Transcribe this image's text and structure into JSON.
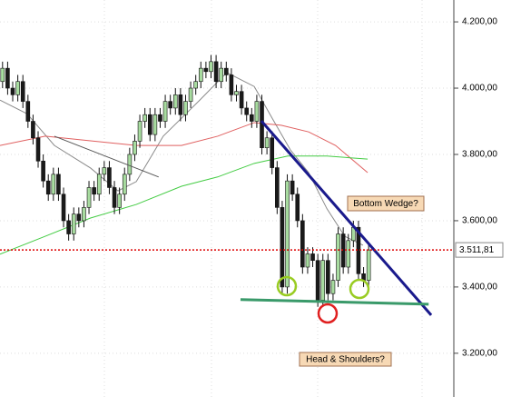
{
  "chart_data": {
    "type": "candlestick",
    "xlim": [
      -0.5,
      88.75
    ],
    "ylim": [
      3068,
      4266
    ],
    "yticks": [
      {
        "value": 4200,
        "label": "4.200,00"
      },
      {
        "value": 4000,
        "label": "4.000,00"
      },
      {
        "value": 3800,
        "label": "3.800,00"
      },
      {
        "value": 3600,
        "label": "3.600,00"
      },
      {
        "value": 3400,
        "label": "3.400,00"
      },
      {
        "value": 3200,
        "label": "3.200,00"
      }
    ],
    "grid": true,
    "up_color": "#a8dca0",
    "down_color": "#1a1a1a",
    "open": [
      4020,
      4060,
      4000,
      3980,
      4020,
      3960,
      3900,
      3850,
      3780,
      3720,
      3680,
      3740,
      3680,
      3600,
      3560,
      3620,
      3600,
      3640,
      3700,
      3680,
      3740,
      3760,
      3700,
      3640,
      3680,
      3740,
      3800,
      3840,
      3900,
      3920,
      3860,
      3920,
      3900,
      3960,
      3940,
      3980,
      3920,
      3960,
      4000,
      4020,
      4060,
      4050,
      4080,
      4020,
      4060,
      4040,
      3980,
      3990,
      3940,
      3920,
      3900,
      3960,
      3820,
      3850,
      3760,
      3640,
      3400,
      3720,
      3680,
      3600,
      3460,
      3500,
      3480,
      3360,
      3480,
      3380,
      3420,
      3560,
      3460,
      3540,
      3580,
      3440,
      3420
    ],
    "high": [
      4080,
      4080,
      4020,
      4040,
      4040,
      3980,
      3920,
      3870,
      3800,
      3740,
      3760,
      3760,
      3700,
      3620,
      3640,
      3640,
      3660,
      3720,
      3720,
      3760,
      3780,
      3780,
      3720,
      3700,
      3760,
      3820,
      3860,
      3920,
      3940,
      3940,
      3940,
      3940,
      3980,
      3980,
      4000,
      4000,
      3980,
      4020,
      4040,
      4080,
      4080,
      4100,
      4100,
      4080,
      4080,
      4060,
      4010,
      4010,
      3960,
      3940,
      3980,
      3980,
      3870,
      3870,
      3780,
      3660,
      3740,
      3740,
      3700,
      3620,
      3520,
      3520,
      3500,
      3500,
      3500,
      3440,
      3580,
      3580,
      3560,
      3600,
      3600,
      3460,
      3530
    ],
    "low": [
      4000,
      3980,
      3960,
      3960,
      3940,
      3880,
      3830,
      3760,
      3700,
      3660,
      3660,
      3660,
      3580,
      3540,
      3540,
      3580,
      3580,
      3620,
      3660,
      3660,
      3720,
      3680,
      3620,
      3620,
      3660,
      3720,
      3780,
      3820,
      3880,
      3840,
      3840,
      3880,
      3880,
      3920,
      3920,
      3900,
      3900,
      3940,
      3980,
      4000,
      4030,
      4030,
      4000,
      4000,
      4020,
      3960,
      3960,
      3920,
      3900,
      3880,
      3880,
      3800,
      3800,
      3740,
      3620,
      3380,
      3380,
      3660,
      3580,
      3440,
      3440,
      3460,
      3340,
      3340,
      3360,
      3360,
      3400,
      3440,
      3440,
      3520,
      3420,
      3400,
      3400
    ],
    "close": [
      4060,
      4000,
      3980,
      4020,
      3960,
      3900,
      3850,
      3780,
      3720,
      3680,
      3740,
      3680,
      3600,
      3560,
      3620,
      3600,
      3640,
      3700,
      3680,
      3740,
      3760,
      3700,
      3640,
      3680,
      3740,
      3800,
      3840,
      3900,
      3920,
      3860,
      3920,
      3900,
      3960,
      3940,
      3980,
      3920,
      3960,
      4000,
      4020,
      4060,
      4050,
      4080,
      4020,
      4060,
      4040,
      3980,
      3990,
      3940,
      3920,
      3900,
      3960,
      3820,
      3850,
      3760,
      3640,
      3400,
      3720,
      3680,
      3600,
      3460,
      3500,
      3480,
      3360,
      3480,
      3380,
      3420,
      3560,
      3460,
      3540,
      3580,
      3440,
      3420,
      3511.81
    ],
    "averages": [
      {
        "color": "#8a8a8a",
        "x": [
          -0.5,
          4.8,
          10.2,
          17.3,
          22.7,
          26.3,
          31.6,
          38.8,
          44.1,
          49.5,
          53,
          56.6,
          60.2,
          63.8,
          67.3,
          70.9
        ],
        "values": [
          3964,
          3923,
          3827,
          3759,
          3690,
          3718,
          3855,
          3964,
          4047,
          4005,
          3910,
          3814,
          3745,
          3636,
          3553,
          3526
        ]
      },
      {
        "color": "#e06060",
        "x": [
          -0.5,
          8.4,
          17.3,
          26.3,
          35.2,
          42.3,
          49.5,
          54.8,
          60.2,
          65.5,
          71.8
        ],
        "values": [
          3827,
          3855,
          3841,
          3827,
          3827,
          3855,
          3896,
          3888,
          3868,
          3827,
          3745
        ]
      },
      {
        "color": "#44cc44",
        "x": [
          -0.5,
          8.4,
          17.3,
          26.3,
          35.2,
          42.3,
          49.5,
          56.1,
          63.8,
          71.8
        ],
        "values": [
          3499,
          3553,
          3608,
          3649,
          3704,
          3732,
          3773,
          3795,
          3795,
          3786
        ]
      }
    ],
    "trendlines": [
      {
        "color": "#555555",
        "width": 1,
        "x": [
          10.2,
          30.7
        ],
        "values": [
          3855,
          3732
        ]
      },
      {
        "color": "#1a1a8c",
        "width": 3,
        "x": [
          50.9,
          84.3
        ],
        "values": [
          3901,
          3315
        ]
      },
      {
        "color": "#3a9a6a",
        "width": 3,
        "x": [
          46.8,
          83.8
        ],
        "values": [
          3362,
          3348
        ]
      }
    ],
    "last_price": {
      "value": 3511.81,
      "label": "3.511,81",
      "color": "#dd0000"
    },
    "annotations": [
      "Bottom Wedge?",
      "Head & Shoulders?"
    ]
  }
}
